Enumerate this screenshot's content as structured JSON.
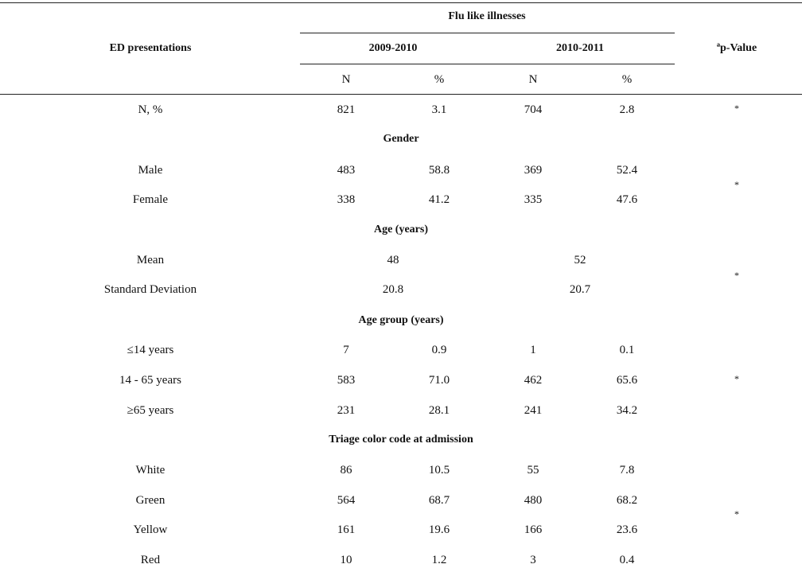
{
  "table": {
    "header": {
      "row_label": "ED presentations",
      "group_label": "Flu like illnesses",
      "period_1": "2009-2010",
      "period_2": "2010-2011",
      "pvalue_label": "ªp-Value",
      "col_n": "N",
      "col_pct": "%"
    },
    "rows": [
      {
        "label": "N, %",
        "n1": "821",
        "p1": "3.1",
        "n2": "704",
        "p2": "2.8"
      },
      {
        "section": "Gender"
      },
      {
        "label": "Male",
        "n1": "483",
        "p1": "58.8",
        "n2": "369",
        "p2": "52.4"
      },
      {
        "label": "Female",
        "n1": "338",
        "p1": "41.2",
        "n2": "335",
        "p2": "47.6"
      },
      {
        "section": "Age (years)"
      },
      {
        "label": "Mean",
        "v1": "48",
        "v2": "52"
      },
      {
        "label": "Standard Deviation",
        "v1": "20.8",
        "v2": "20.7"
      },
      {
        "section": "Age group (years)"
      },
      {
        "label": "≤14 years",
        "n1": "7",
        "p1": "0.9",
        "n2": "1",
        "p2": "0.1"
      },
      {
        "label": "14 - 65 years",
        "n1": "583",
        "p1": "71.0",
        "n2": "462",
        "p2": "65.6"
      },
      {
        "label": "≥65 years",
        "n1": "231",
        "p1": "28.1",
        "n2": "241",
        "p2": "34.2"
      },
      {
        "section": "Triage color code at admission"
      },
      {
        "label": "White",
        "n1": "86",
        "p1": "10.5",
        "n2": "55",
        "p2": "7.8"
      },
      {
        "label": "Green",
        "n1": "564",
        "p1": "68.7",
        "n2": "480",
        "p2": "68.2"
      },
      {
        "label": "Yellow",
        "n1": "161",
        "p1": "19.6",
        "n2": "166",
        "p2": "23.6"
      },
      {
        "label": "Red",
        "n1": "10",
        "p1": "1.2",
        "n2": "3",
        "p2": "0.4"
      }
    ],
    "pvalue_marks": [
      "*",
      "*",
      "*",
      "*",
      "*"
    ]
  }
}
